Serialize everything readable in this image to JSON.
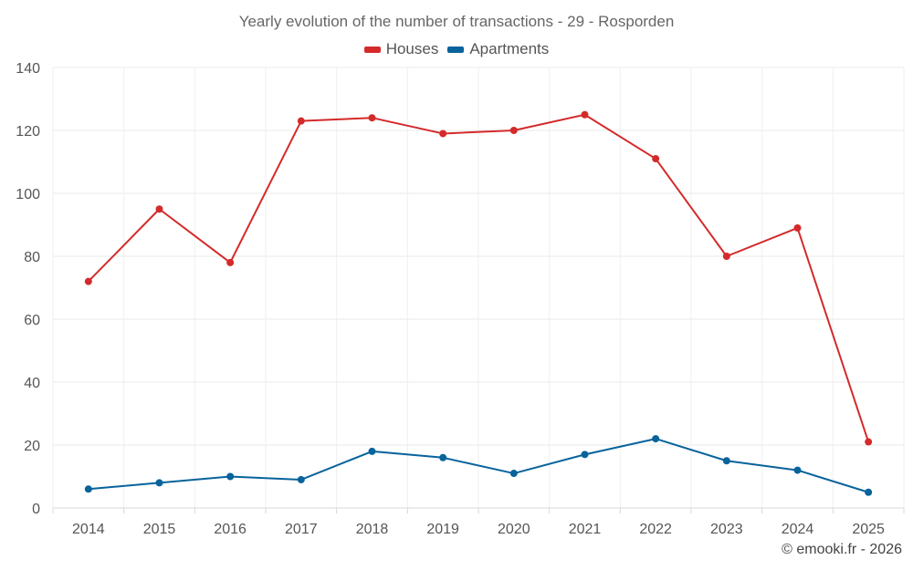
{
  "chart_data": {
    "type": "line",
    "title": "Yearly evolution of the number of transactions - 29 - Rosporden",
    "categories": [
      "2014",
      "2015",
      "2016",
      "2017",
      "2018",
      "2019",
      "2020",
      "2021",
      "2022",
      "2023",
      "2024",
      "2025"
    ],
    "series": [
      {
        "name": "Houses",
        "color": "#d42a2a",
        "values": [
          72,
          95,
          78,
          123,
          124,
          119,
          120,
          125,
          111,
          80,
          89,
          21
        ]
      },
      {
        "name": "Apartments",
        "color": "#08639c",
        "values": [
          6,
          8,
          10,
          9,
          18,
          16,
          11,
          17,
          22,
          15,
          12,
          5
        ]
      }
    ],
    "ylim": [
      0,
      140
    ],
    "yticks": [
      0,
      20,
      40,
      60,
      80,
      100,
      120,
      140
    ],
    "xlabel": "",
    "ylabel": "",
    "grid": true,
    "legend_position": "top-center"
  },
  "credit": "© emooki.fr - 2026"
}
